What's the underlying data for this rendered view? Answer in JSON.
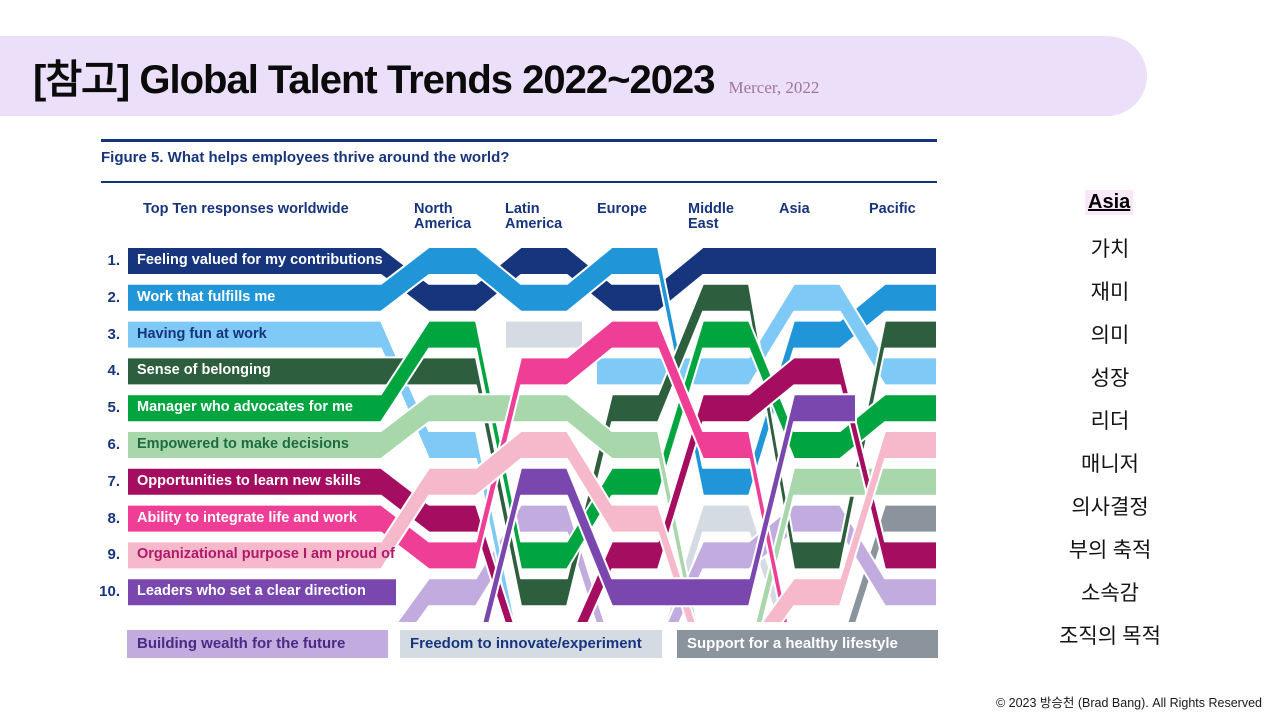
{
  "title": {
    "text": "[참고] Global Talent Trends 2022~2023",
    "source": "Mercer, 2022"
  },
  "figure": {
    "title": "Figure 5. What helps employees thrive around the world?"
  },
  "chart_data": {
    "type": "bump",
    "columns": [
      "Top Ten responses worldwide",
      "North America",
      "Latin America",
      "Europe",
      "Middle East",
      "Asia",
      "Pacific"
    ],
    "rank_labels": [
      "1.",
      "2.",
      "3.",
      "4.",
      "5.",
      "6.",
      "7.",
      "8.",
      "9.",
      "10."
    ],
    "items": [
      {
        "id": "feeling-valued",
        "label": "Feeling valued for my contributions",
        "color": "#17357d",
        "label_color": "#ffffff",
        "ranks": [
          1,
          2,
          1,
          2,
          1,
          1,
          1
        ]
      },
      {
        "id": "work-fulfills",
        "label": "Work that fulfills me",
        "color": "#2095d7",
        "label_color": "#ffffff",
        "ranks": [
          2,
          1,
          2,
          1,
          7,
          3,
          2
        ]
      },
      {
        "id": "having-fun",
        "label": "Having fun at work",
        "color": "#7ec9f6",
        "label_color": "#17357d",
        "ranks": [
          3,
          6,
          null,
          4,
          4,
          2,
          4
        ]
      },
      {
        "id": "belonging",
        "label": "Sense of belonging",
        "color": "#2d5e3d",
        "label_color": "#ffffff",
        "ranks": [
          4,
          4,
          10,
          5,
          2,
          9,
          3
        ]
      },
      {
        "id": "manager-advocates",
        "label": "Manager who advocates for me",
        "color": "#00a53f",
        "label_color": "#ffffff",
        "ranks": [
          5,
          3,
          9,
          7,
          3,
          6,
          5
        ]
      },
      {
        "id": "empowered",
        "label": "Empowered to make decisions",
        "color": "#a9d7ac",
        "label_color": "#1d6c41",
        "ranks": [
          6,
          5,
          5,
          6,
          null,
          7,
          7
        ]
      },
      {
        "id": "learn-skills",
        "label": "Opportunities to learn new skills",
        "color": "#a50d61",
        "label_color": "#ffffff",
        "ranks": [
          7,
          8,
          null,
          9,
          5,
          4,
          9
        ]
      },
      {
        "id": "integrate-life",
        "label": "Ability to integrate life and work",
        "color": "#ee3e96",
        "label_color": "#ffffff",
        "ranks": [
          8,
          9,
          4,
          3,
          6,
          null,
          null
        ]
      },
      {
        "id": "org-purpose",
        "label": "Organizational purpose I am proud of",
        "color": "#f6b9cb",
        "label_color": "#b0186b",
        "ranks": [
          9,
          7,
          6,
          8,
          null,
          10,
          6
        ]
      },
      {
        "id": "leaders-direction",
        "label": "Leaders who set a clear direction",
        "color": "#7a47ae",
        "label_color": "#ffffff",
        "ranks": [
          10,
          null,
          7,
          10,
          10,
          5,
          null
        ]
      },
      {
        "id": "building-wealth",
        "label": "Building wealth for the future",
        "color": "#c2abdf",
        "label_color": "#4b2a84",
        "ranks": [
          null,
          10,
          8,
          null,
          9,
          8,
          10
        ]
      },
      {
        "id": "freedom-innovate",
        "label": "Freedom to innovate/experiment",
        "color": "#d5dbe2",
        "label_color": "#17357d",
        "ranks": [
          null,
          null,
          3,
          null,
          8,
          null,
          null
        ]
      },
      {
        "id": "healthy-lifestyle",
        "label": "Support for a healthy lifestyle",
        "color": "#8b939c",
        "label_color": "#ffffff",
        "ranks": [
          null,
          null,
          null,
          null,
          null,
          null,
          8
        ]
      }
    ]
  },
  "right_panel": {
    "header": "Asia",
    "items": [
      "가치",
      "재미",
      "의미",
      "성장",
      "리더",
      "매니저",
      "의사결정",
      "부의 축적",
      "소속감",
      "조직의 목적"
    ]
  },
  "copyright": "© 2023 방승천 (Brad Bang). All Rights Reserved"
}
